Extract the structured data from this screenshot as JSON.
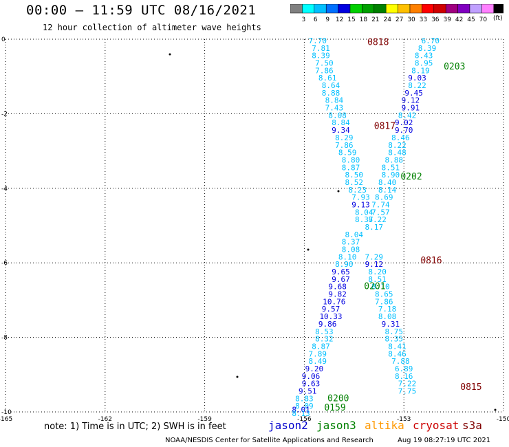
{
  "header": {
    "title": "00:00 – 11:59 UTC 08/16/2021",
    "subtitle": "12 hour collection of altimeter wave heights"
  },
  "colorbar": {
    "labels": [
      "3",
      "6",
      "9",
      "12",
      "15",
      "18",
      "21",
      "24",
      "27",
      "30",
      "33",
      "36",
      "39",
      "42",
      "45",
      "70"
    ],
    "colors": [
      "#808080",
      "#00ffff",
      "#00bfff",
      "#0070ff",
      "#0000e0",
      "#00d000",
      "#00a000",
      "#008000",
      "#ffff00",
      "#ffc000",
      "#ff8000",
      "#ff0000",
      "#d00000",
      "#a00080",
      "#8000c0",
      "#c0a0ff",
      "#ff80ff",
      "#000000"
    ],
    "units": "(ft)"
  },
  "footer": {
    "note": "note:  1) Time is in UTC;  2) SWH is in feet",
    "satellites": [
      {
        "name": "jason2",
        "color": "#0000cc"
      },
      {
        "name": "jason3",
        "color": "#008000"
      },
      {
        "name": "altika",
        "color": "#ff9900"
      },
      {
        "name": "cryosat",
        "color": "#cc0000"
      },
      {
        "name": "s3a",
        "color": "#800000"
      }
    ],
    "credit": "NOAA/NESDIS Center for Satellite Applications and Research",
    "timestamp": "Aug 19 08:27:19 UTC 2021"
  },
  "chart_data": {
    "type": "scatter",
    "xlim": [
      -165,
      -150
    ],
    "ylim": [
      -10,
      0
    ],
    "x_ticks": [
      "-165",
      "-162",
      "-159",
      "-156",
      "-153",
      "-150"
    ],
    "y_ticks": [
      "0",
      "-2",
      "-4",
      "-6",
      "-8",
      "-10"
    ],
    "grid": true,
    "tracks": [
      {
        "time": "0818",
        "color": "#800000",
        "x": [
          -155.6,
          -155.5,
          -155.5,
          -155.4,
          -155.4,
          -155.3,
          -155.2,
          -155.2,
          -155.1,
          -155.1,
          -155.0,
          -154.9,
          -154.9,
          -154.8,
          -154.8,
          -154.7,
          -154.6,
          -154.6,
          -154.5,
          -154.5,
          -154.4,
          -154.3,
          -154.3,
          -154.2,
          -154.2
        ],
        "y": [
          0,
          -0.2,
          -0.4,
          -0.6,
          -0.8,
          -1.0,
          -1.2,
          -1.4,
          -1.6,
          -1.8,
          -2.0,
          -2.2,
          -2.4,
          -2.6,
          -2.8,
          -3.0,
          -3.2,
          -3.4,
          -3.6,
          -3.8,
          -4.0,
          -4.2,
          -4.4,
          -4.6,
          -4.8
        ],
        "values": [
          7.7,
          7.81,
          8.39,
          7.5,
          7.86,
          8.61,
          8.64,
          8.88,
          8.84,
          7.43,
          8.08,
          8.84,
          9.34,
          8.29,
          7.86,
          8.59,
          8.8,
          8.87,
          8.5,
          8.52,
          8.23,
          7.93,
          9.13,
          8.04,
          8.37
        ]
      },
      {
        "time": "0203",
        "color": "#008000",
        "x": [
          -152.2,
          -152.3,
          -152.4,
          -152.4,
          -152.5,
          -152.6,
          -152.6,
          -152.7,
          -152.8,
          -152.8,
          -152.9,
          -153.0,
          -153.0,
          -153.1,
          -153.2,
          -153.2,
          -153.3,
          -153.4,
          -153.4,
          -153.5,
          -153.5,
          -153.6,
          -153.7,
          -153.7,
          -153.8,
          -153.9
        ],
        "y": [
          0,
          -0.2,
          -0.4,
          -0.6,
          -0.8,
          -1.0,
          -1.2,
          -1.4,
          -1.6,
          -1.8,
          -2.0,
          -2.2,
          -2.4,
          -2.6,
          -2.8,
          -3.0,
          -3.2,
          -3.4,
          -3.6,
          -3.8,
          -4.0,
          -4.2,
          -4.4,
          -4.6,
          -4.8,
          -5.0
        ],
        "values": [
          6.7,
          8.39,
          8.43,
          8.95,
          8.19,
          9.03,
          8.22,
          9.45,
          9.12,
          9.91,
          8.42,
          9.02,
          9.7,
          8.46,
          8.22,
          8.48,
          8.88,
          8.51,
          8.9,
          8.4,
          8.14,
          8.69,
          7.74,
          7.57,
          8.22,
          8.17
        ]
      }
    ]
  },
  "annotations": [
    {
      "text": "0818",
      "color": "#800000",
      "x": -154.1,
      "y": -0.05
    },
    {
      "text": "0203",
      "color": "#008000",
      "x": -151.8,
      "y": -0.7
    },
    {
      "text": "0817",
      "color": "#800000",
      "x": -153.9,
      "y": -2.3
    },
    {
      "text": "0202",
      "color": "#008000",
      "x": -153.1,
      "y": -3.65
    },
    {
      "text": "0816",
      "color": "#800000",
      "x": -152.5,
      "y": -5.9
    },
    {
      "text": "0201",
      "color": "#008000",
      "x": -154.2,
      "y": -6.6
    },
    {
      "text": "0815",
      "color": "#800000",
      "x": -151.3,
      "y": -9.3
    },
    {
      "text": "0200",
      "color": "#008000",
      "x": -155.3,
      "y": -9.6
    },
    {
      "text": "0159",
      "color": "#008000",
      "x": -155.4,
      "y": -9.85
    }
  ],
  "more_points": [
    {
      "x": -154.5,
      "y": -5.2,
      "v": "8.04",
      "c": "#00bfff"
    },
    {
      "x": -154.6,
      "y": -5.4,
      "v": "8.37",
      "c": "#00bfff"
    },
    {
      "x": -154.6,
      "y": -5.6,
      "v": "8.08",
      "c": "#00bfff"
    },
    {
      "x": -154.7,
      "y": -5.8,
      "v": "8.10",
      "c": "#00bfff"
    },
    {
      "x": -154.8,
      "y": -6.0,
      "v": "8.90",
      "c": "#00bfff"
    },
    {
      "x": -154.9,
      "y": -6.2,
      "v": "9.65",
      "c": "#0000e0"
    },
    {
      "x": -154.9,
      "y": -6.4,
      "v": "9.67",
      "c": "#0000e0"
    },
    {
      "x": -155.0,
      "y": -6.6,
      "v": "9.68",
      "c": "#0000e0"
    },
    {
      "x": -155.0,
      "y": -6.8,
      "v": "9.82",
      "c": "#0000e0"
    },
    {
      "x": -155.1,
      "y": -7.0,
      "v": "10.76",
      "c": "#0000e0"
    },
    {
      "x": -155.2,
      "y": -7.2,
      "v": "9.57",
      "c": "#0000e0"
    },
    {
      "x": -155.2,
      "y": -7.4,
      "v": "10.33",
      "c": "#0000e0"
    },
    {
      "x": -155.3,
      "y": -7.6,
      "v": "9.86",
      "c": "#0000e0"
    },
    {
      "x": -155.4,
      "y": -7.8,
      "v": "8.53",
      "c": "#00bfff"
    },
    {
      "x": -155.4,
      "y": -8.0,
      "v": "8.32",
      "c": "#00bfff"
    },
    {
      "x": -155.5,
      "y": -8.2,
      "v": "8.87",
      "c": "#00bfff"
    },
    {
      "x": -155.6,
      "y": -8.4,
      "v": "7.89",
      "c": "#00bfff"
    },
    {
      "x": -155.6,
      "y": -8.6,
      "v": "8.49",
      "c": "#00bfff"
    },
    {
      "x": -155.7,
      "y": -8.8,
      "v": "9.20",
      "c": "#0000e0"
    },
    {
      "x": -155.8,
      "y": -9.0,
      "v": "9.06",
      "c": "#0000e0"
    },
    {
      "x": -155.8,
      "y": -9.2,
      "v": "9.63",
      "c": "#0000e0"
    },
    {
      "x": -155.9,
      "y": -9.4,
      "v": "9.51",
      "c": "#0000e0"
    },
    {
      "x": -156.0,
      "y": -9.6,
      "v": "8.83",
      "c": "#00bfff"
    },
    {
      "x": -156.0,
      "y": -9.8,
      "v": "8.09",
      "c": "#00bfff"
    },
    {
      "x": -156.1,
      "y": -9.9,
      "v": "8.01",
      "c": "#0000e0"
    },
    {
      "x": -156.1,
      "y": -10.0,
      "v": "8.13",
      "c": "#00bfff"
    },
    {
      "x": -153.9,
      "y": -5.8,
      "v": "7.29",
      "c": "#00bfff"
    },
    {
      "x": -153.9,
      "y": -6.0,
      "v": "9.12",
      "c": "#0000e0"
    },
    {
      "x": -153.8,
      "y": -6.2,
      "v": "8.20",
      "c": "#00bfff"
    },
    {
      "x": -153.8,
      "y": -6.4,
      "v": "8.51",
      "c": "#00bfff"
    },
    {
      "x": -153.7,
      "y": -6.6,
      "v": "8.10",
      "c": "#00bfff"
    },
    {
      "x": -153.6,
      "y": -6.8,
      "v": "8.65",
      "c": "#00bfff"
    },
    {
      "x": -153.6,
      "y": -7.0,
      "v": "7.86",
      "c": "#00bfff"
    },
    {
      "x": -153.5,
      "y": -7.2,
      "v": "7.18",
      "c": "#00bfff"
    },
    {
      "x": -153.5,
      "y": -7.4,
      "v": "8.08",
      "c": "#00bfff"
    },
    {
      "x": -153.4,
      "y": -7.6,
      "v": "9.31",
      "c": "#0000e0"
    },
    {
      "x": -153.3,
      "y": -7.8,
      "v": "8.75",
      "c": "#00bfff"
    },
    {
      "x": -153.3,
      "y": -8.0,
      "v": "8.35",
      "c": "#00bfff"
    },
    {
      "x": -153.2,
      "y": -8.2,
      "v": "8.41",
      "c": "#00bfff"
    },
    {
      "x": -153.2,
      "y": -8.4,
      "v": "8.46",
      "c": "#00bfff"
    },
    {
      "x": -153.1,
      "y": -8.6,
      "v": "7.88",
      "c": "#00bfff"
    },
    {
      "x": -153.0,
      "y": -8.8,
      "v": "6.89",
      "c": "#00bfff"
    },
    {
      "x": -153.0,
      "y": -9.0,
      "v": "8.16",
      "c": "#00bfff"
    },
    {
      "x": -152.9,
      "y": -9.2,
      "v": "7.22",
      "c": "#00bfff"
    },
    {
      "x": -152.9,
      "y": -9.4,
      "v": "7.75",
      "c": "#00bfff"
    }
  ]
}
